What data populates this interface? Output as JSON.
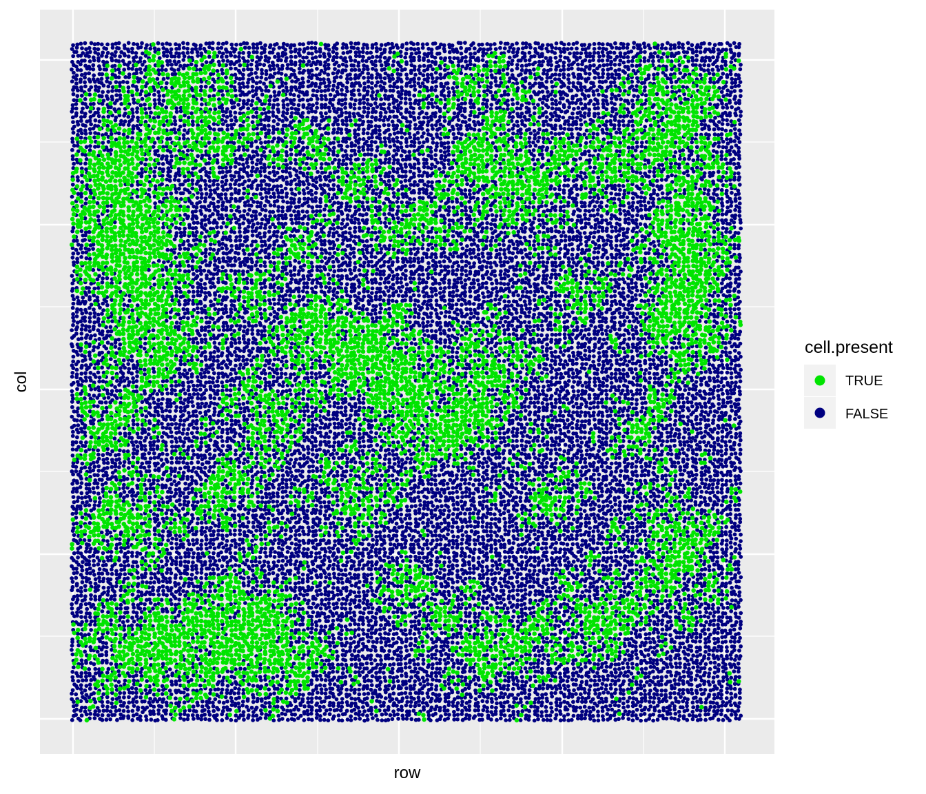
{
  "chart_data": {
    "type": "scatter",
    "title": "",
    "xlabel": "row",
    "ylabel": "col",
    "grid": true,
    "x_tick_labels": [],
    "y_tick_labels": [],
    "legend": {
      "title": "cell.present",
      "position": "right",
      "entries": [
        {
          "label": "TRUE",
          "color": "#00e400"
        },
        {
          "label": "FALSE",
          "color": "#000080"
        }
      ]
    },
    "series": [
      {
        "name": "TRUE",
        "color": "#00e400",
        "description_points": "clustered patches",
        "points": []
      },
      {
        "name": "FALSE",
        "color": "#000080",
        "points": []
      }
    ],
    "panel_background": "#ebebeb",
    "grid_color": "#ffffff"
  }
}
